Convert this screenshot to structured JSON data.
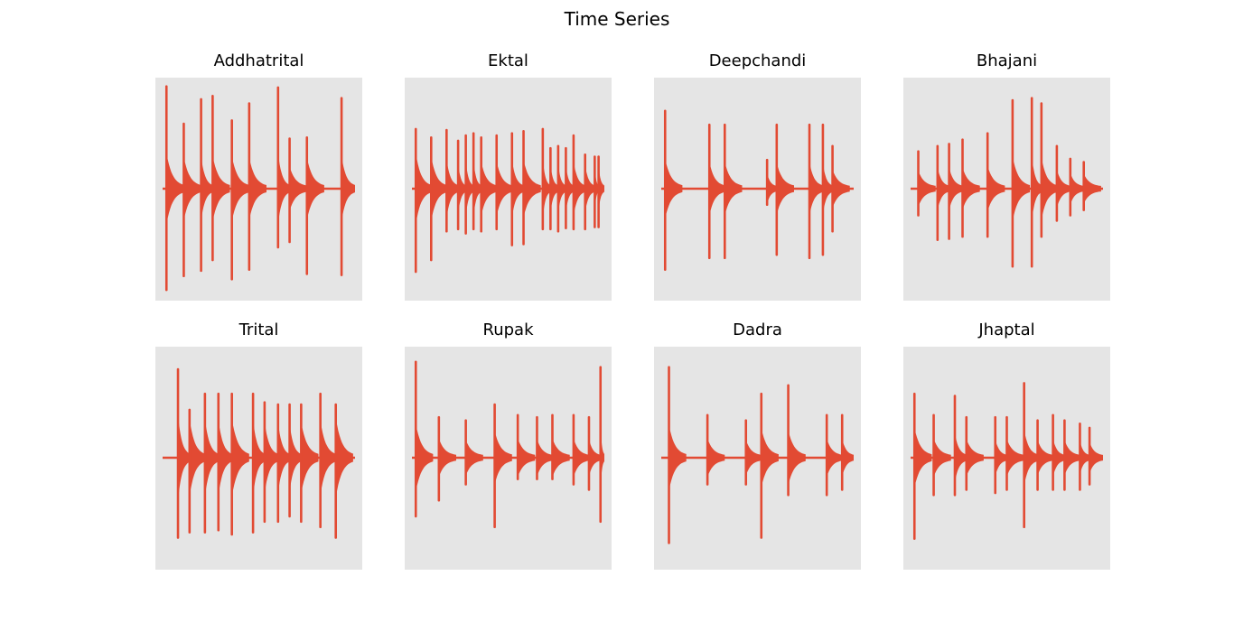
{
  "figure": {
    "title": "Time Series",
    "background": "#ffffff",
    "axes_background": "#e5e5e5",
    "line_color": "#e24a33"
  },
  "chart_data": [
    {
      "type": "line",
      "title": "Addhatrital",
      "grid": false,
      "ylim": [
        -1,
        1
      ],
      "onsets": [
        0.02,
        0.11,
        0.2,
        0.26,
        0.36,
        0.45,
        0.6,
        0.66,
        0.75,
        0.93
      ],
      "peaks_up": [
        0.96,
        0.61,
        0.84,
        0.87,
        0.64,
        0.8,
        0.95,
        0.47,
        0.48,
        0.85
      ],
      "peaks_down": [
        -0.95,
        -0.82,
        -0.77,
        -0.67,
        -0.85,
        -0.76,
        -0.55,
        -0.5,
        -0.8,
        -0.81
      ]
    },
    {
      "type": "line",
      "title": "Ektal",
      "grid": false,
      "ylim": [
        -1,
        1
      ],
      "onsets": [
        0.02,
        0.1,
        0.18,
        0.24,
        0.28,
        0.32,
        0.36,
        0.44,
        0.52,
        0.58,
        0.68,
        0.72,
        0.76,
        0.8,
        0.84,
        0.9,
        0.95,
        0.97
      ],
      "peaks_up": [
        0.56,
        0.48,
        0.55,
        0.45,
        0.5,
        0.52,
        0.48,
        0.5,
        0.52,
        0.54,
        0.56,
        0.38,
        0.4,
        0.38,
        0.5,
        0.32,
        0.3,
        0.3
      ],
      "peaks_down": [
        -0.78,
        -0.67,
        -0.4,
        -0.38,
        -0.42,
        -0.38,
        -0.4,
        -0.38,
        -0.53,
        -0.52,
        -0.38,
        -0.38,
        -0.4,
        -0.37,
        -0.38,
        -0.38,
        -0.36,
        -0.36
      ],
      "envelope": 0.1
    },
    {
      "type": "line",
      "title": "Deepchandi",
      "grid": false,
      "ylim": [
        -1,
        1
      ],
      "onsets": [
        0.02,
        0.25,
        0.33,
        0.55,
        0.6,
        0.77,
        0.84,
        0.89
      ],
      "peaks_up": [
        0.73,
        0.6,
        0.6,
        0.27,
        0.6,
        0.6,
        0.6,
        0.4
      ],
      "peaks_down": [
        -0.76,
        -0.65,
        -0.65,
        -0.15,
        -0.62,
        -0.65,
        -0.62,
        -0.4
      ]
    },
    {
      "type": "line",
      "title": "Bhajani",
      "grid": false,
      "ylim": [
        -1,
        1
      ],
      "onsets": [
        0.04,
        0.14,
        0.2,
        0.27,
        0.4,
        0.53,
        0.63,
        0.68,
        0.76,
        0.83,
        0.9
      ],
      "peaks_up": [
        0.35,
        0.4,
        0.42,
        0.46,
        0.52,
        0.83,
        0.85,
        0.8,
        0.4,
        0.28,
        0.25
      ],
      "peaks_down": [
        -0.25,
        -0.48,
        -0.47,
        -0.45,
        -0.45,
        -0.73,
        -0.73,
        -0.45,
        -0.3,
        -0.25,
        -0.2
      ]
    },
    {
      "type": "line",
      "title": "Trital",
      "grid": false,
      "ylim": [
        -1,
        1
      ],
      "onsets": [
        0.08,
        0.14,
        0.22,
        0.29,
        0.36,
        0.47,
        0.53,
        0.6,
        0.66,
        0.72,
        0.82,
        0.9
      ],
      "peaks_up": [
        0.83,
        0.45,
        0.6,
        0.6,
        0.6,
        0.6,
        0.52,
        0.5,
        0.5,
        0.5,
        0.6,
        0.5
      ],
      "peaks_down": [
        -0.75,
        -0.7,
        -0.7,
        -0.68,
        -0.72,
        -0.7,
        -0.6,
        -0.6,
        -0.55,
        -0.6,
        -0.65,
        -0.75
      ],
      "envelope": 0.15
    },
    {
      "type": "line",
      "title": "Rupak",
      "grid": false,
      "ylim": [
        -1,
        1
      ],
      "onsets": [
        0.02,
        0.14,
        0.28,
        0.43,
        0.55,
        0.65,
        0.73,
        0.84,
        0.92,
        0.98
      ],
      "peaks_up": [
        0.9,
        0.38,
        0.35,
        0.5,
        0.4,
        0.38,
        0.4,
        0.4,
        0.38,
        0.85
      ],
      "peaks_down": [
        -0.55,
        -0.4,
        -0.25,
        -0.65,
        -0.2,
        -0.2,
        -0.2,
        -0.25,
        -0.3,
        -0.6
      ]
    },
    {
      "type": "line",
      "title": "Dadra",
      "grid": false,
      "ylim": [
        -1,
        1
      ],
      "onsets": [
        0.04,
        0.24,
        0.44,
        0.52,
        0.66,
        0.86,
        0.94
      ],
      "peaks_up": [
        0.85,
        0.4,
        0.35,
        0.6,
        0.68,
        0.4,
        0.4
      ],
      "peaks_down": [
        -0.8,
        -0.25,
        -0.25,
        -0.75,
        -0.35,
        -0.35,
        -0.3
      ]
    },
    {
      "type": "line",
      "title": "Jhaptal",
      "grid": false,
      "ylim": [
        -1,
        1
      ],
      "onsets": [
        0.02,
        0.12,
        0.23,
        0.29,
        0.44,
        0.5,
        0.59,
        0.66,
        0.74,
        0.8,
        0.88,
        0.93
      ],
      "peaks_up": [
        0.6,
        0.4,
        0.58,
        0.38,
        0.38,
        0.38,
        0.7,
        0.35,
        0.4,
        0.35,
        0.32,
        0.28
      ],
      "peaks_down": [
        -0.76,
        -0.35,
        -0.35,
        -0.3,
        -0.33,
        -0.3,
        -0.65,
        -0.3,
        -0.3,
        -0.3,
        -0.3,
        -0.25
      ]
    }
  ]
}
